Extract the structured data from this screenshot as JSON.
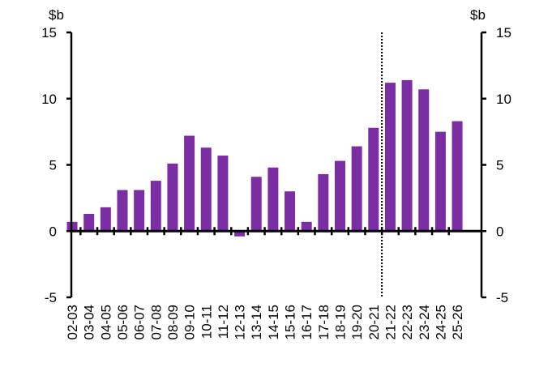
{
  "chart_data": {
    "type": "bar",
    "categories": [
      "02-03",
      "03-04",
      "04-05",
      "05-06",
      "06-07",
      "07-08",
      "08-09",
      "09-10",
      "10-11",
      "11-12",
      "12-13",
      "13-14",
      "14-15",
      "15-16",
      "16-17",
      "17-18",
      "18-19",
      "19-20",
      "20-21",
      "21-22",
      "22-23",
      "23-24",
      "24-25",
      "25-26"
    ],
    "values": [
      0.7,
      1.3,
      1.8,
      3.1,
      3.1,
      3.8,
      5.1,
      7.2,
      6.3,
      5.7,
      -0.4,
      4.1,
      4.8,
      3.0,
      0.7,
      4.3,
      5.3,
      6.4,
      7.8,
      11.2,
      11.4,
      10.7,
      7.5,
      8.3
    ],
    "ylim": [
      -5,
      15
    ],
    "yticks": [
      -5,
      0,
      5,
      10,
      15
    ],
    "left_unit": "$b",
    "right_unit": "$b",
    "bar_color": "#7b2ea3",
    "marker_after_category": "21-22",
    "grid": false
  }
}
